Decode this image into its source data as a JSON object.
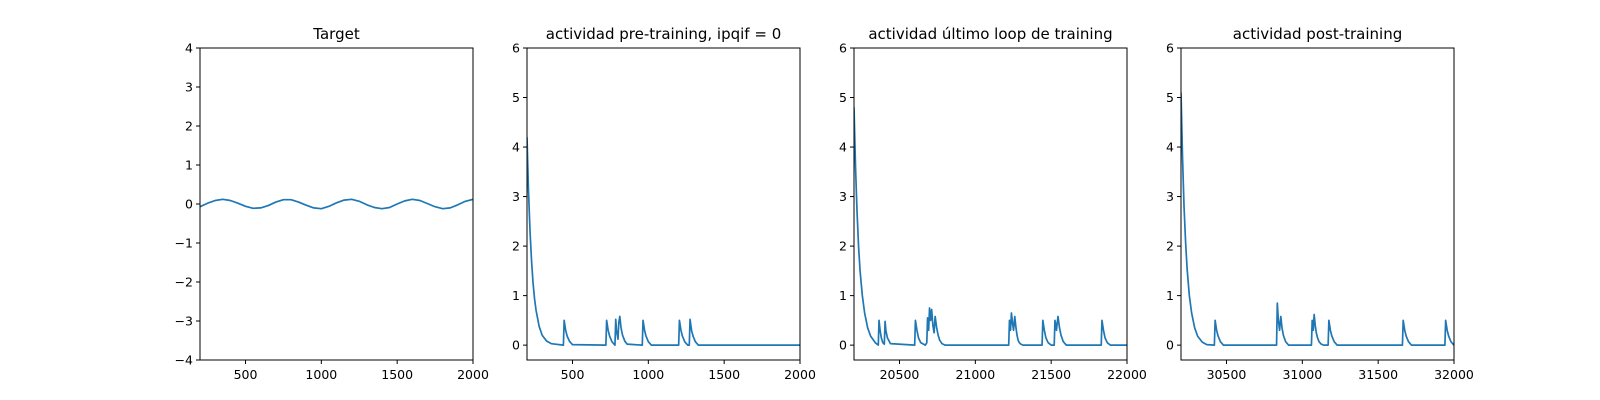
{
  "chart_data": [
    {
      "type": "line",
      "title": "Target",
      "xlim": [
        200,
        2000
      ],
      "ylim": [
        -4,
        4
      ],
      "xticks": [
        500,
        1000,
        1500,
        2000
      ],
      "yticks": [
        -4,
        -3,
        -2,
        -1,
        0,
        1,
        2,
        3,
        4
      ],
      "line_color": "#1f77b4",
      "series": [
        {
          "x": [
            200,
            250,
            300,
            350,
            400,
            450,
            500,
            550,
            600,
            650,
            700,
            750,
            800,
            850,
            900,
            950,
            1000,
            1050,
            1100,
            1150,
            1200,
            1250,
            1300,
            1350,
            1400,
            1450,
            1500,
            1550,
            1600,
            1650,
            1700,
            1750,
            1800,
            1850,
            1900,
            1950,
            2000
          ],
          "y": [
            -0.07,
            0.02,
            0.09,
            0.12,
            0.09,
            0.02,
            -0.06,
            -0.11,
            -0.1,
            -0.04,
            0.05,
            0.11,
            0.11,
            0.05,
            -0.03,
            -0.1,
            -0.12,
            -0.06,
            0.03,
            0.1,
            0.12,
            0.07,
            -0.02,
            -0.09,
            -0.12,
            -0.09,
            0.0,
            0.08,
            0.12,
            0.09,
            0.01,
            -0.07,
            -0.12,
            -0.1,
            -0.02,
            0.07,
            0.12
          ]
        }
      ]
    },
    {
      "type": "line",
      "title": "actividad pre-training, ipqif = 0",
      "xlim": [
        200,
        2000
      ],
      "ylim": [
        -0.3,
        6
      ],
      "xticks": [
        500,
        1000,
        1500,
        2000
      ],
      "yticks": [
        0,
        1,
        2,
        3,
        4,
        5,
        6
      ],
      "line_color": "#1f77b4",
      "series": [
        {
          "x": [
            200,
            210,
            220,
            230,
            240,
            250,
            260,
            280,
            300,
            330,
            360,
            440,
            445,
            455,
            465,
            480,
            500,
            720,
            725,
            735,
            745,
            760,
            780,
            785,
            790,
            800,
            805,
            812,
            820,
            830,
            845,
            860,
            960,
            965,
            975,
            985,
            1000,
            1020,
            1200,
            1205,
            1215,
            1225,
            1240,
            1260,
            1270,
            1275,
            1285,
            1295,
            1310,
            1330,
            2000
          ],
          "y": [
            4.2,
            3.1,
            2.3,
            1.7,
            1.25,
            0.93,
            0.7,
            0.38,
            0.2,
            0.08,
            0.03,
            0.0,
            0.5,
            0.3,
            0.18,
            0.08,
            0.01,
            0.0,
            0.5,
            0.3,
            0.18,
            0.07,
            0.0,
            0.52,
            0.3,
            0.12,
            0.45,
            0.58,
            0.35,
            0.2,
            0.08,
            0.02,
            0.0,
            0.5,
            0.3,
            0.18,
            0.07,
            0.0,
            0.0,
            0.5,
            0.3,
            0.18,
            0.07,
            0.0,
            0.0,
            0.52,
            0.3,
            0.18,
            0.07,
            0.0,
            0.0
          ]
        }
      ]
    },
    {
      "type": "line",
      "title": "actividad último loop de training",
      "xlim": [
        20200,
        22000
      ],
      "ylim": [
        -0.3,
        6
      ],
      "xticks": [
        20500,
        21000,
        21500,
        22000
      ],
      "yticks": [
        0,
        1,
        2,
        3,
        4,
        5,
        6
      ],
      "line_color": "#1f77b4",
      "series": [
        {
          "x": [
            20200,
            20210,
            20220,
            20230,
            20240,
            20255,
            20270,
            20290,
            20310,
            20340,
            20360,
            20365,
            20372,
            20380,
            20390,
            20400,
            20405,
            20410,
            20420,
            20440,
            20600,
            20605,
            20615,
            20625,
            20640,
            20670,
            20680,
            20685,
            20692,
            20698,
            20705,
            20712,
            20720,
            20728,
            20735,
            20745,
            20755,
            20765,
            20780,
            20800,
            21220,
            21225,
            21232,
            21238,
            21245,
            21252,
            21260,
            21268,
            21275,
            21282,
            21290,
            21300,
            21315,
            21340,
            21440,
            21445,
            21455,
            21465,
            21480,
            21500,
            21520,
            21525,
            21535,
            21540,
            21545,
            21555,
            21565,
            21580,
            21600,
            21830,
            21835,
            21845,
            21855,
            21870,
            21890,
            22000
          ],
          "y": [
            4.8,
            3.6,
            2.7,
            2.0,
            1.5,
            1.0,
            0.65,
            0.35,
            0.18,
            0.05,
            0.0,
            0.5,
            0.3,
            0.15,
            0.05,
            0.02,
            0.48,
            0.3,
            0.15,
            0.03,
            0.0,
            0.5,
            0.3,
            0.15,
            0.05,
            0.0,
            0.05,
            0.55,
            0.3,
            0.75,
            0.5,
            0.72,
            0.4,
            0.25,
            0.58,
            0.35,
            0.2,
            0.1,
            0.03,
            0.0,
            0.0,
            0.5,
            0.3,
            0.65,
            0.45,
            0.3,
            0.58,
            0.35,
            0.2,
            0.1,
            0.05,
            0.02,
            0.0,
            0.0,
            0.0,
            0.5,
            0.3,
            0.15,
            0.05,
            0.0,
            0.0,
            0.5,
            0.3,
            0.45,
            0.58,
            0.35,
            0.2,
            0.07,
            0.0,
            0.0,
            0.5,
            0.3,
            0.15,
            0.05,
            0.0,
            0.0
          ]
        }
      ]
    },
    {
      "type": "line",
      "title": "actividad post-training",
      "xlim": [
        30200,
        32000
      ],
      "ylim": [
        -0.3,
        6
      ],
      "xticks": [
        30500,
        31000,
        31500,
        32000
      ],
      "yticks": [
        0,
        1,
        2,
        3,
        4,
        5,
        6
      ],
      "line_color": "#1f77b4",
      "series": [
        {
          "x": [
            30200,
            30210,
            30220,
            30230,
            30240,
            30255,
            30270,
            30290,
            30310,
            30340,
            30370,
            30420,
            30425,
            30435,
            30445,
            30460,
            30480,
            30800,
            30830,
            30835,
            30842,
            30850,
            30858,
            30866,
            30875,
            30890,
            30910,
            31060,
            31065,
            31072,
            31078,
            31085,
            31092,
            31100,
            31110,
            31125,
            31140,
            31170,
            31175,
            31185,
            31195,
            31210,
            31230,
            31660,
            31665,
            31675,
            31685,
            31700,
            31720,
            31940,
            31945,
            31955,
            31965,
            31980,
            32000
          ],
          "y": [
            5.1,
            3.8,
            2.8,
            2.1,
            1.55,
            1.0,
            0.65,
            0.35,
            0.18,
            0.06,
            0.01,
            0.0,
            0.5,
            0.3,
            0.18,
            0.07,
            0.0,
            0.0,
            0.0,
            0.85,
            0.5,
            0.3,
            0.58,
            0.35,
            0.2,
            0.07,
            0.0,
            0.0,
            0.5,
            0.3,
            0.62,
            0.4,
            0.25,
            0.15,
            0.07,
            0.02,
            0.0,
            0.0,
            0.5,
            0.3,
            0.18,
            0.07,
            0.0,
            0.0,
            0.5,
            0.3,
            0.18,
            0.07,
            0.0,
            0.0,
            0.5,
            0.3,
            0.18,
            0.07,
            0.0
          ]
        }
      ]
    }
  ]
}
